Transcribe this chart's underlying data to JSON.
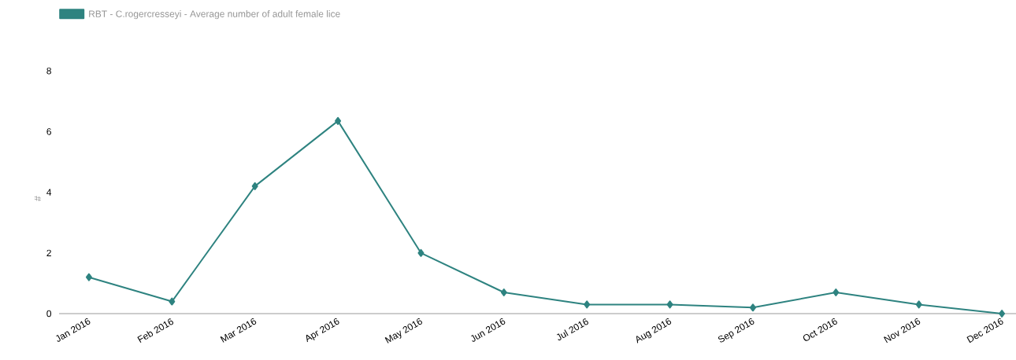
{
  "chart_data": {
    "type": "line",
    "ylabel": "#",
    "categories": [
      "Jan 2016",
      "Feb 2016",
      "Mar 2016",
      "Apr 2016",
      "May 2016",
      "Jun 2016",
      "Jul 2016",
      "Aug 2016",
      "Sep 2016",
      "Oct 2016",
      "Nov 2016",
      "Dec 2016"
    ],
    "series": [
      {
        "name": "RBT - C.rogercresseyi - Average number of adult female lice",
        "color": "#2e8380",
        "values": [
          1.2,
          0.4,
          4.2,
          6.35,
          2.0,
          0.7,
          0.3,
          0.3,
          0.2,
          0.7,
          0.3,
          0.0
        ]
      }
    ],
    "ylim": [
      0,
      8
    ],
    "yticks": [
      0,
      2,
      4,
      6,
      8
    ],
    "legend": "top left",
    "marker": "diamond",
    "line_style": "solid"
  }
}
